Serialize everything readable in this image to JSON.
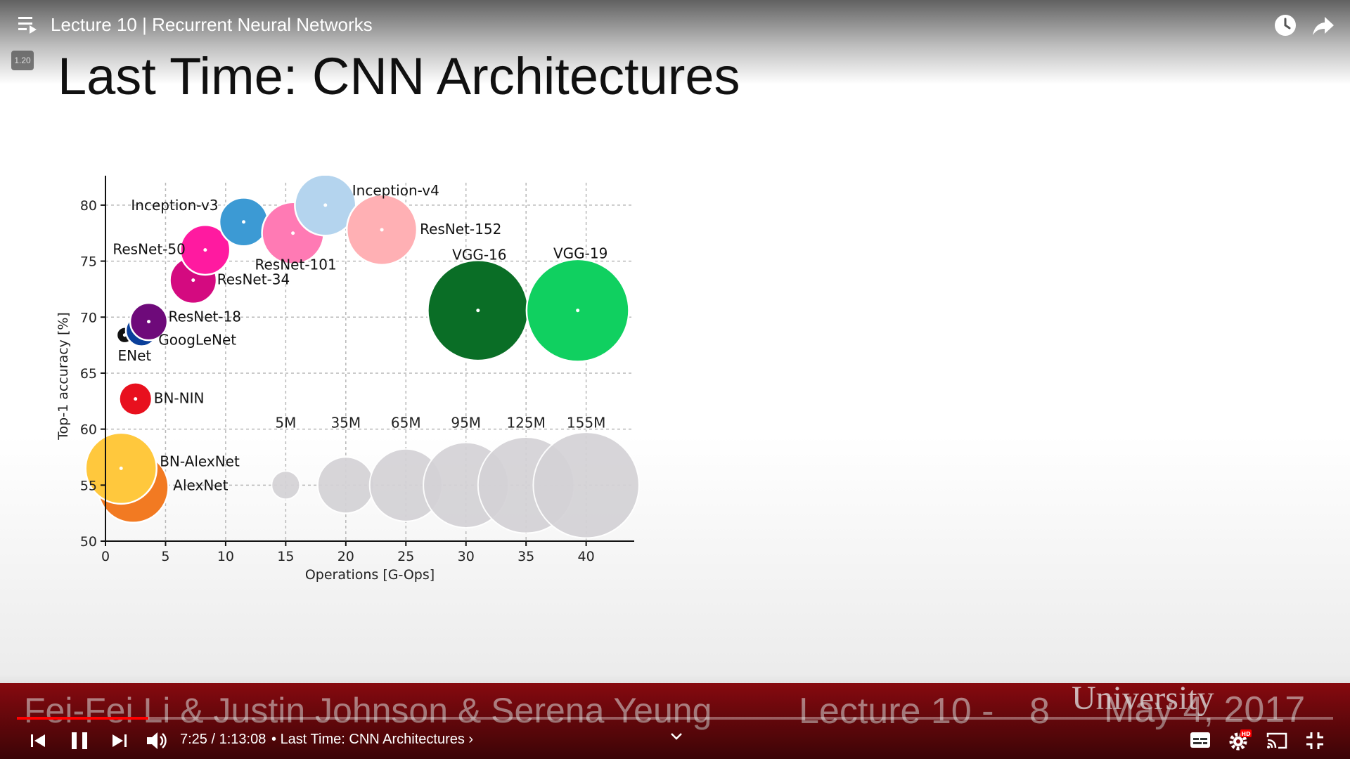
{
  "player": {
    "video_title": "Lecture 10 | Recurrent Neural Networks",
    "speed_badge": "1.20",
    "current_time": "7:25",
    "duration": "1:13:08",
    "chapter": "Last Time: CNN Architectures",
    "progress_fraction": 0.1,
    "icons": {
      "playlist": "playlist-icon",
      "watch_later": "clock-icon",
      "share": "share-arrow-icon",
      "prev": "skip-previous-icon",
      "pause": "pause-icon",
      "next": "skip-next-icon",
      "volume": "volume-icon",
      "chevron": "chevron-down-icon",
      "subtitles": "subtitles-icon",
      "settings": "gear-icon",
      "cast": "cast-icon",
      "exit_fullscreen": "exit-fullscreen-icon"
    },
    "accent_color": "#ff0000",
    "hd_badge": "HD"
  },
  "slide": {
    "title": "Last Time: CNN Architectures",
    "footer": {
      "authors": "Fei-Fei Li & Justin Johnson & Serena Yeung",
      "lecture": "Lecture 10 -",
      "page": "8",
      "date": "May 4, 2017",
      "university": "University",
      "banner_color": "#7a090e"
    }
  },
  "chart_data": {
    "type": "scatter",
    "title": "",
    "xlabel": "Operations [G-Ops]",
    "ylabel": "Top-1 accuracy [%]",
    "xlim": [
      0,
      44
    ],
    "ylim": [
      50,
      82
    ],
    "xticks": [
      0,
      5,
      10,
      15,
      20,
      25,
      30,
      35,
      40
    ],
    "yticks": [
      50,
      55,
      60,
      65,
      70,
      75,
      80
    ],
    "grid": true,
    "points": [
      {
        "label": "AlexNet",
        "x": 2.3,
        "y": 54.8,
        "params_m": 61,
        "color": "#f27a22"
      },
      {
        "label": "BN-AlexNet",
        "x": 1.3,
        "y": 56.5,
        "params_m": 62,
        "color": "#ffc83d"
      },
      {
        "label": "BN-NIN",
        "x": 2.5,
        "y": 62.7,
        "params_m": 8,
        "color": "#e8101e"
      },
      {
        "label": "ENet",
        "x": 1.6,
        "y": 68.4,
        "params_m": 0.4,
        "color": "#111111"
      },
      {
        "label": "GoogLeNet",
        "x": 3.0,
        "y": 68.8,
        "params_m": 7,
        "color": "#0a3f9a"
      },
      {
        "label": "ResNet-18",
        "x": 3.6,
        "y": 69.6,
        "params_m": 11.7,
        "color": "#6e0a7a"
      },
      {
        "label": "ResNet-34",
        "x": 7.3,
        "y": 73.3,
        "params_m": 21.8,
        "color": "#d40a80"
      },
      {
        "label": "ResNet-50",
        "x": 8.3,
        "y": 76.0,
        "params_m": 25.6,
        "color": "#ff1aa0"
      },
      {
        "label": "Inception-v3",
        "x": 11.5,
        "y": 78.5,
        "params_m": 24,
        "color": "#3c9ad4"
      },
      {
        "label": "ResNet-101",
        "x": 15.6,
        "y": 77.5,
        "params_m": 44.5,
        "color": "#ff7ab4"
      },
      {
        "label": "Inception-v4",
        "x": 18.3,
        "y": 80.0,
        "params_m": 43,
        "color": "#b4d4ee"
      },
      {
        "label": "ResNet-152",
        "x": 23.0,
        "y": 77.8,
        "params_m": 60.2,
        "color": "#ffb0b4"
      },
      {
        "label": "VGG-16",
        "x": 31.0,
        "y": 70.6,
        "params_m": 138,
        "color": "#0a6e26"
      },
      {
        "label": "VGG-19",
        "x": 39.3,
        "y": 70.6,
        "params_m": 144,
        "color": "#10d060"
      }
    ],
    "size_legend": {
      "y": 55,
      "items": [
        {
          "label": "5M",
          "x": 15,
          "params_m": 5
        },
        {
          "label": "35M",
          "x": 20,
          "params_m": 35
        },
        {
          "label": "65M",
          "x": 25,
          "params_m": 65
        },
        {
          "label": "95M",
          "x": 30,
          "params_m": 95
        },
        {
          "label": "125M",
          "x": 35,
          "params_m": 125
        },
        {
          "label": "155M",
          "x": 40,
          "params_m": 155
        }
      ],
      "color": "#d4d2d6"
    }
  }
}
